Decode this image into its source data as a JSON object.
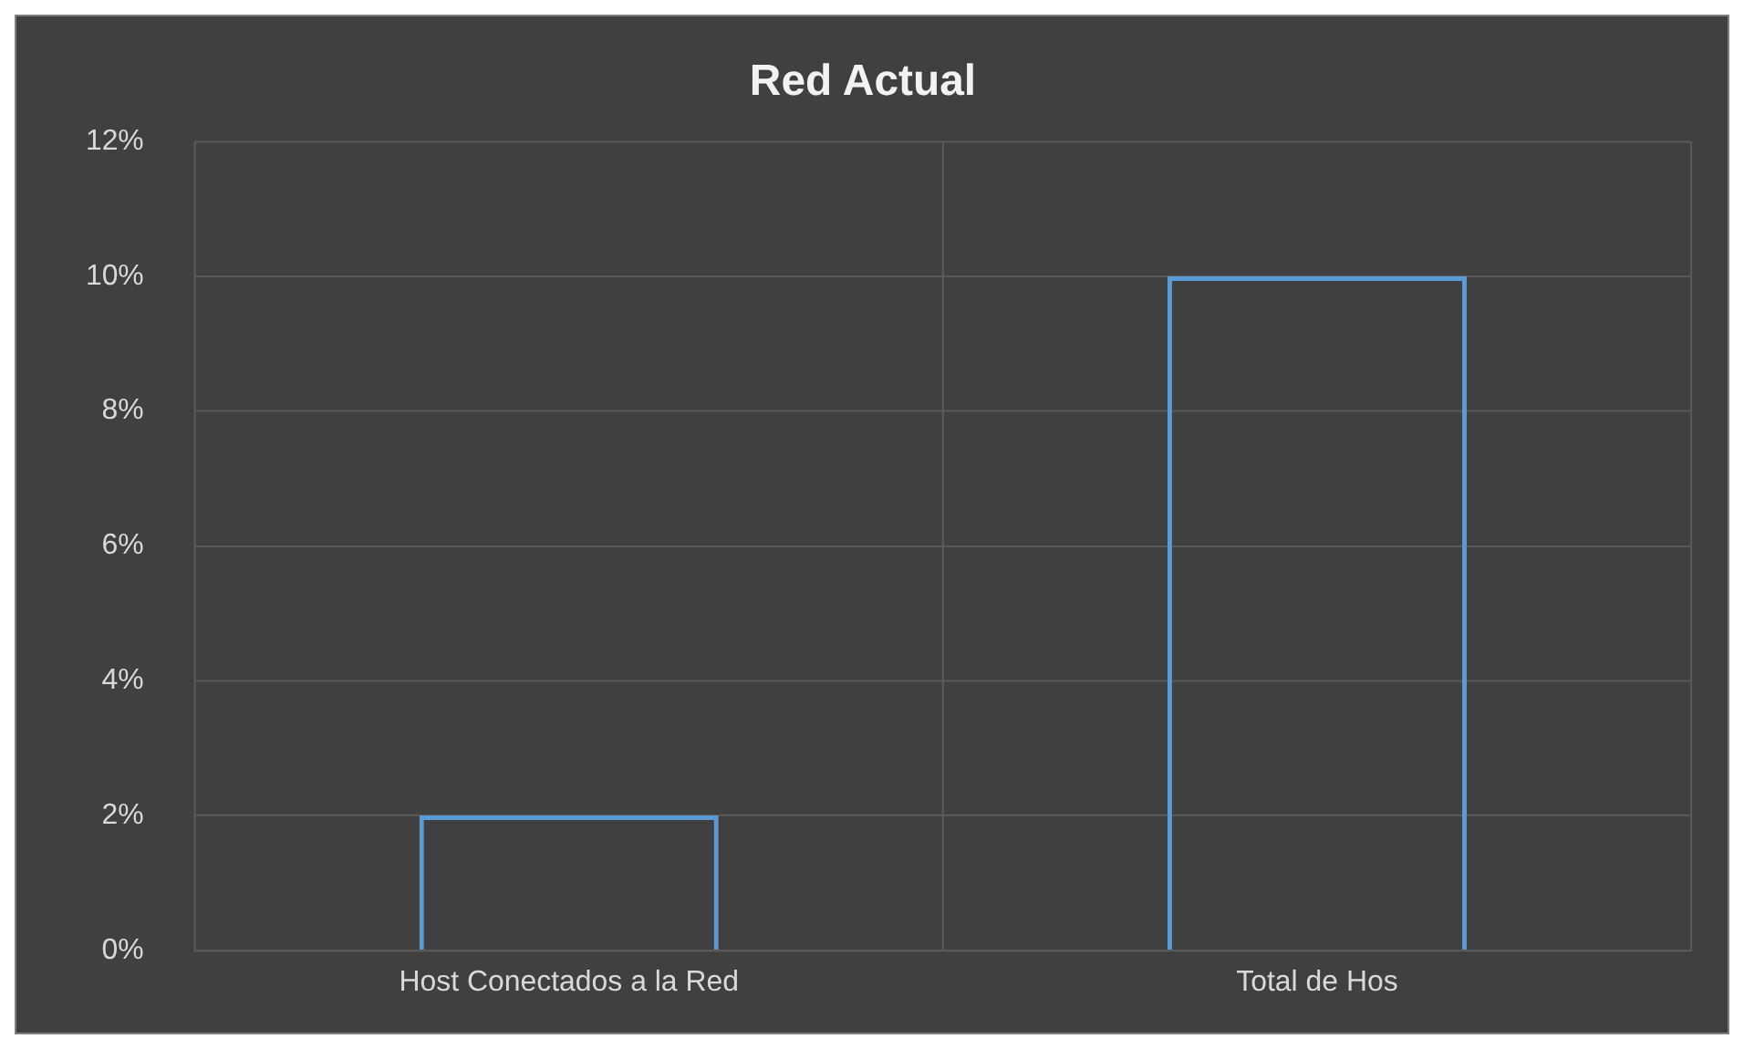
{
  "chart_data": {
    "type": "bar",
    "title": "Red Actual",
    "categories": [
      "Host Conectados a la Red",
      "Total de Hos"
    ],
    "values": [
      2,
      10
    ],
    "color": "#5b9bd5",
    "ylim": [
      0,
      12
    ],
    "yticks": [
      {
        "value": 0,
        "label": "0%"
      },
      {
        "value": 2,
        "label": "2%"
      },
      {
        "value": 4,
        "label": "4%"
      },
      {
        "value": 6,
        "label": "6%"
      },
      {
        "value": 8,
        "label": "8%"
      },
      {
        "value": 10,
        "label": "10%"
      },
      {
        "value": 12,
        "label": "12%"
      }
    ],
    "grid": true
  }
}
